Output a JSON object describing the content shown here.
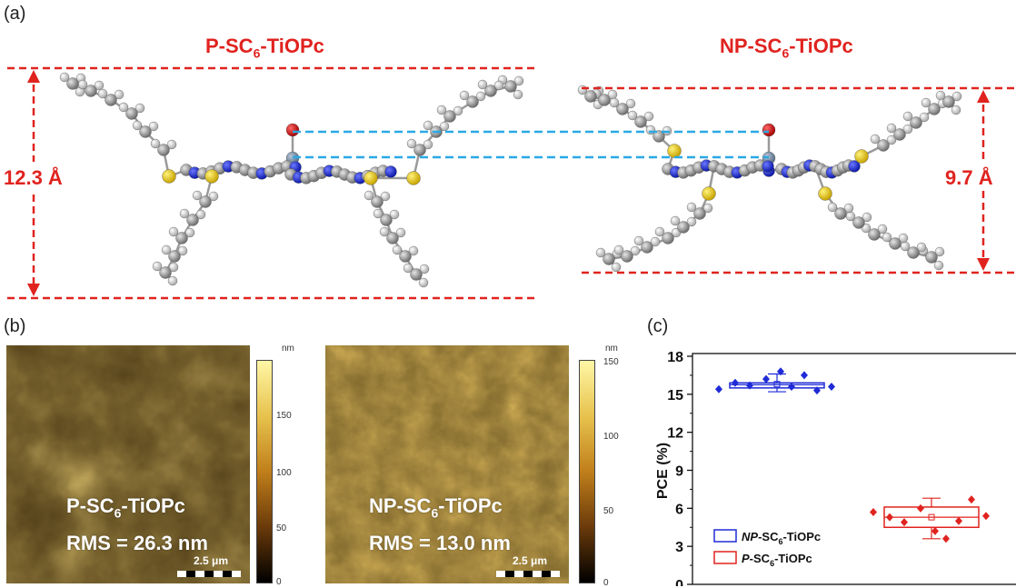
{
  "panel_a": {
    "label": "(a)",
    "left_title": {
      "main": "P-SC",
      "sub": "6",
      "rest": "-TiOPc"
    },
    "right_title": {
      "main": "NP-SC",
      "sub": "6",
      "rest": "-TiOPc"
    },
    "left_height": "12.3 Å",
    "right_height": "9.7 Å"
  },
  "panel_b": {
    "label": "(b)",
    "images": [
      {
        "name_main": "P-SC",
        "name_sub": "6",
        "name_rest": "-TiOPc",
        "rms": "RMS = 26.3 nm",
        "scale": "2.5 μm",
        "colorbar_unit": "nm",
        "colorbar_ticks": [
          "150",
          "100",
          "50",
          "0"
        ]
      },
      {
        "name_main": "NP-SC",
        "name_sub": "6",
        "name_rest": "-TiOPc",
        "rms": "RMS = 13.0 nm",
        "scale": "2.5 μm",
        "colorbar_unit": "nm",
        "colorbar_ticks": [
          "150",
          "100",
          "50",
          "0"
        ]
      }
    ]
  },
  "chart_data": {
    "type": "box",
    "panel_label": "(c)",
    "ylabel": "PCE (%)",
    "ylim": [
      0,
      18
    ],
    "yticks": [
      "0",
      "3",
      "6",
      "9",
      "12",
      "15",
      "18"
    ],
    "legend_placement": "bottom-left",
    "series": [
      {
        "name_italic": "NP",
        "name_main": "-SC",
        "name_sub": "6",
        "name_rest": "-TiOPc",
        "color": "#1f2bd6",
        "box": {
          "q1": 15.5,
          "median": 15.75,
          "q3": 15.9,
          "whisker_low": 15.2,
          "whisker_high": 16.6,
          "mean": 15.8
        },
        "points": [
          15.4,
          15.9,
          15.7,
          16.2,
          16.8,
          15.6,
          16.5,
          15.3,
          15.6
        ]
      },
      {
        "name_italic": "P",
        "name_main": "-SC",
        "name_sub": "6",
        "name_rest": "-TiOPc",
        "color": "#e0231f",
        "box": {
          "q1": 4.5,
          "median": 5.3,
          "q3": 6.1,
          "whisker_low": 3.6,
          "whisker_high": 6.8,
          "mean": 5.3
        },
        "points": [
          5.7,
          5.3,
          4.9,
          6.0,
          4.2,
          3.6,
          5.0,
          6.7,
          5.4
        ]
      }
    ]
  }
}
